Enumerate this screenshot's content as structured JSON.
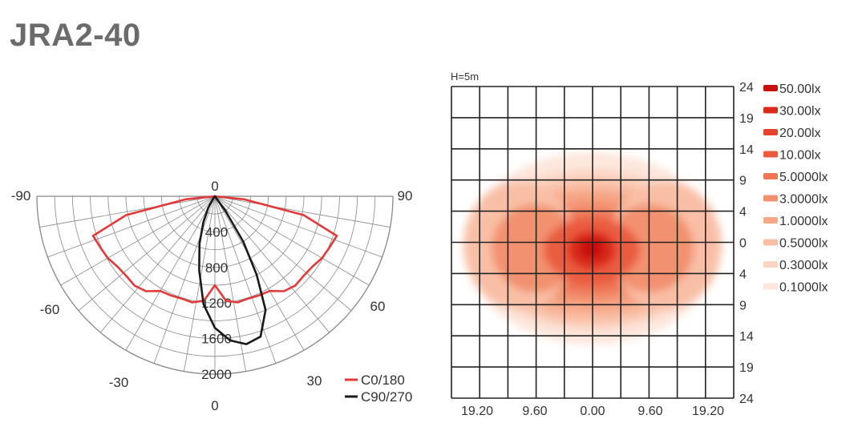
{
  "title": "JRA2-40",
  "colors": {
    "c0_180": "#e03a3a",
    "c90_270": "#1a1a1a",
    "grid": "#888888",
    "iso_levels": [
      "#fde6dc",
      "#fcd4c3",
      "#f9bfa6",
      "#f6a888",
      "#f29170",
      "#ee7656",
      "#ea5c40",
      "#e4422c",
      "#d92a1c",
      "#c8100e"
    ]
  },
  "chart_data": [
    {
      "type": "polar",
      "title": "",
      "angle_labels": [
        "-90",
        "-60",
        "-30",
        "0",
        "30",
        "60",
        "90",
        "0"
      ],
      "radial_ticks": [
        400,
        800,
        1200,
        1600,
        2000
      ],
      "radial_tick_labels": [
        "400",
        "800",
        "1200",
        "1600",
        "2000"
      ],
      "r_max": 2000,
      "legend": {
        "position": "bottom-right",
        "entries": [
          "C0/180",
          "C90/270"
        ]
      },
      "series": [
        {
          "name": "C0/180",
          "angles": [
            -90,
            -84,
            -78,
            -72,
            -66,
            -60,
            -54,
            -48,
            -42,
            -36,
            -30,
            -24,
            -18,
            -12,
            -6,
            0,
            6,
            12,
            18,
            24,
            30,
            36,
            42,
            48,
            54,
            60,
            66,
            72,
            78,
            84,
            90
          ],
          "values": [
            0,
            330,
            1020,
            1440,
            1410,
            1390,
            1350,
            1340,
            1350,
            1320,
            1230,
            1220,
            1210,
            1220,
            1180,
            1000,
            1180,
            1220,
            1210,
            1220,
            1230,
            1320,
            1350,
            1340,
            1350,
            1390,
            1410,
            1440,
            1020,
            330,
            0
          ]
        },
        {
          "name": "C90/270",
          "angles": [
            -40,
            -36,
            -30,
            -24,
            -18,
            -12,
            -6,
            0,
            6,
            12,
            18,
            24,
            28,
            32,
            36,
            40
          ],
          "values": [
            0,
            40,
            150,
            320,
            560,
            850,
            1220,
            1480,
            1630,
            1700,
            1660,
            1400,
            1000,
            600,
            200,
            0
          ]
        }
      ]
    },
    {
      "type": "heatmap",
      "title": "H=5m",
      "x_ticks": [
        "19.20",
        "9.60",
        "0.00",
        "9.60",
        "19.20"
      ],
      "y_ticks": [
        "24",
        "19",
        "14",
        "9",
        "4",
        "0",
        "4",
        "9",
        "14",
        "19",
        "24"
      ],
      "legend": {
        "position": "right",
        "entries": [
          "50.00lx",
          "30.00lx",
          "20.00lx",
          "10.00lx",
          "5.0000lx",
          "3.0000lx",
          "1.0000lx",
          "0.5000lx",
          "0.3000lx",
          "0.1000lx"
        ]
      }
    }
  ]
}
